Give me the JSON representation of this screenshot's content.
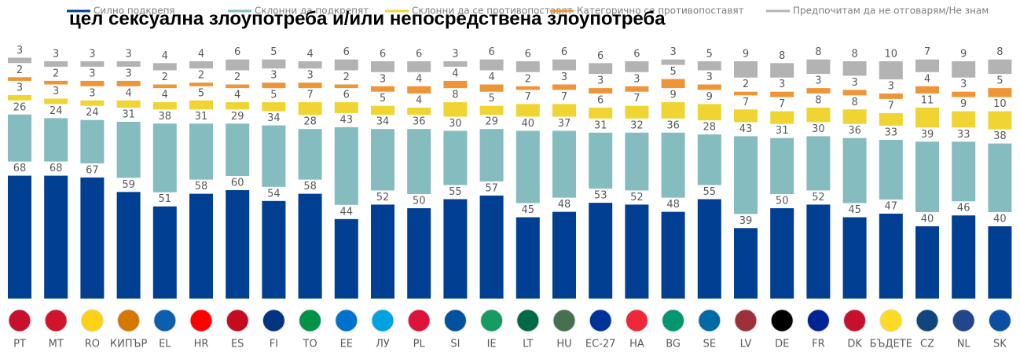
{
  "chart_data": {
    "type": "stacked_bar",
    "title": "цел сексуална злоупотреба и/или непосредствена злоупотреба",
    "categories": [
      "PT",
      "MT",
      "RO",
      "КИПЪР",
      "EL",
      "HR",
      "ES",
      "FI",
      "TO",
      "EE",
      "ЛУ",
      "PL",
      "SI",
      "IE",
      "LT",
      "HU",
      "EC-27",
      "HA",
      "BG",
      "SE",
      "LV",
      "DE",
      "FR",
      "DK",
      "БЪДЕТЕ",
      "CZ",
      "NL",
      "SK"
    ],
    "series": [
      {
        "name": "Силно подкрепя",
        "color": "#003f91",
        "values": [
          68,
          68,
          67,
          59,
          51,
          58,
          60,
          54,
          58,
          44,
          52,
          50,
          55,
          57,
          45,
          48,
          53,
          52,
          48,
          55,
          39,
          50,
          52,
          45,
          47,
          40,
          46,
          40
        ]
      },
      {
        "name": "Склонни да подкрепят",
        "color": "#85bcbf",
        "values": [
          26,
          24,
          24,
          31,
          38,
          31,
          29,
          34,
          28,
          43,
          34,
          36,
          30,
          29,
          40,
          37,
          31,
          32,
          36,
          28,
          43,
          31,
          30,
          36,
          33,
          39,
          33,
          38
        ]
      },
      {
        "name": "Склонни да се противопоставят",
        "color": "#f0d532",
        "values": [
          3,
          3,
          3,
          4,
          4,
          5,
          4,
          5,
          7,
          6,
          5,
          4,
          8,
          5,
          7,
          7,
          6,
          7,
          9,
          9,
          7,
          7,
          8,
          8,
          7,
          11,
          9,
          10
        ]
      },
      {
        "name": "Категорично се противопоставят",
        "color": "#ee9537",
        "values": [
          2,
          2,
          3,
          3,
          2,
          2,
          2,
          3,
          3,
          2,
          3,
          4,
          4,
          4,
          2,
          3,
          3,
          3,
          5,
          3,
          2,
          3,
          3,
          3,
          3,
          4,
          3,
          5
        ]
      },
      {
        "name": "Предпочитам да не отговарям/Не знам",
        "color": "#b3b3b3",
        "values": [
          3,
          3,
          3,
          3,
          4,
          4,
          6,
          5,
          4,
          6,
          6,
          6,
          3,
          6,
          6,
          6,
          6,
          6,
          3,
          5,
          9,
          8,
          8,
          8,
          10,
          7,
          9,
          8
        ]
      }
    ]
  }
}
